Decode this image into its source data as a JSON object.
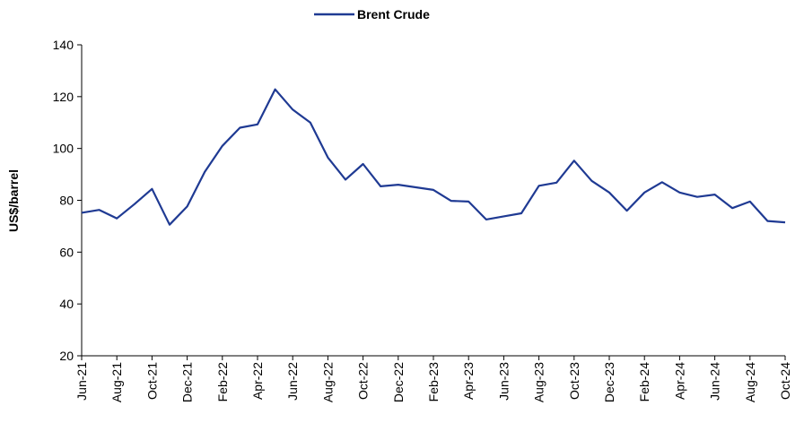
{
  "chart_data": {
    "type": "line",
    "y_label": "US$/barrel",
    "categories": [
      "Jun-21",
      null,
      "Aug-21",
      null,
      "Oct-21",
      null,
      "Dec-21",
      null,
      "Feb-22",
      null,
      "Apr-22",
      null,
      "Jun-22",
      null,
      "Aug-22",
      null,
      "Oct-22",
      null,
      "Dec-22",
      null,
      "Feb-23",
      null,
      "Apr-23",
      null,
      "Jun-23",
      null,
      "Aug-23",
      null,
      "Oct-23",
      null,
      "Dec-23",
      null,
      "Feb-24",
      null,
      "Apr-24",
      null,
      "Jun-24",
      null,
      "Aug-24",
      null,
      "Oct-24"
    ],
    "series": [
      {
        "name": "Brent Crude",
        "color": "#1f3a93",
        "values": [
          75.2,
          76.3,
          73,
          78.5,
          84.4,
          70.6,
          77.6,
          91,
          101,
          108,
          109.3,
          122.8,
          115,
          110,
          96.5,
          88,
          94,
          85.4,
          86,
          85,
          84,
          79.8,
          79.5,
          72.6,
          73.8,
          75,
          85.6,
          86.8,
          95.3,
          87.5,
          83,
          76,
          83,
          87,
          83,
          81.3,
          82.2,
          77,
          79.5,
          72,
          71.5
        ]
      }
    ],
    "ylim": [
      20,
      140
    ],
    "yticks": [
      20,
      40,
      60,
      80,
      100,
      120,
      140
    ],
    "legend": "top",
    "grid": false
  }
}
